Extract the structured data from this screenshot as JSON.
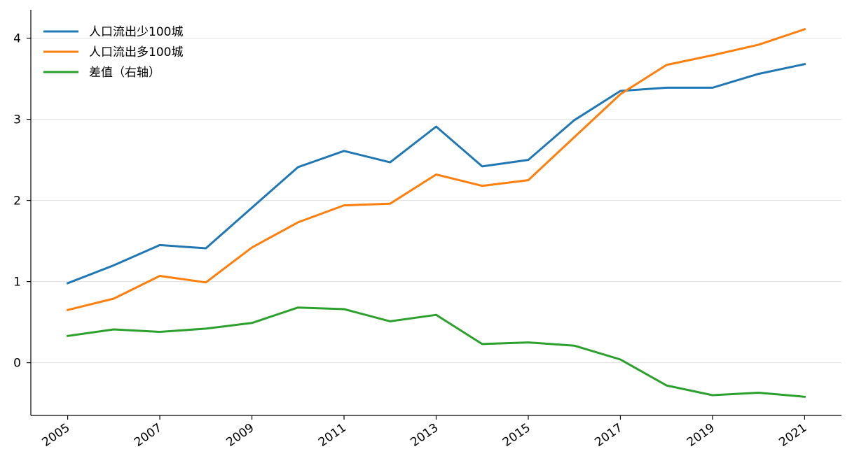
{
  "chart_data": {
    "type": "line",
    "x": [
      2005,
      2006,
      2007,
      2008,
      2009,
      2010,
      2011,
      2012,
      2013,
      2014,
      2015,
      2016,
      2017,
      2018,
      2019,
      2020,
      2021
    ],
    "x_tick_labels": [
      "2005",
      "2007",
      "2009",
      "2011",
      "2013",
      "2015",
      "2017",
      "2019",
      "2021"
    ],
    "y_tick_labels": [
      "0",
      "1",
      "2",
      "3",
      "4"
    ],
    "ylim": [
      -0.65,
      4.35
    ],
    "xlim": [
      2004.2,
      2021.8
    ],
    "grid": "horizontal",
    "legend_position": "top-left",
    "series": [
      {
        "name": "人口流出少100城",
        "color": "#1f77b4",
        "values": [
          0.98,
          1.2,
          1.45,
          1.41,
          1.91,
          2.41,
          2.61,
          2.47,
          2.91,
          2.42,
          2.5,
          2.99,
          3.35,
          3.39,
          3.39,
          3.56,
          3.68
        ]
      },
      {
        "name": "人口流出多100城",
        "color": "#ff7f0e",
        "values": [
          0.65,
          0.79,
          1.07,
          0.99,
          1.42,
          1.73,
          1.94,
          1.96,
          2.32,
          2.18,
          2.25,
          2.78,
          3.31,
          3.67,
          3.79,
          3.92,
          4.11
        ]
      },
      {
        "name": "差值（右轴）",
        "color": "#2ca02c",
        "values": [
          0.33,
          0.41,
          0.38,
          0.42,
          0.49,
          0.68,
          0.66,
          0.51,
          0.59,
          0.23,
          0.25,
          0.21,
          0.04,
          -0.28,
          -0.4,
          -0.37,
          -0.42
        ]
      }
    ]
  }
}
